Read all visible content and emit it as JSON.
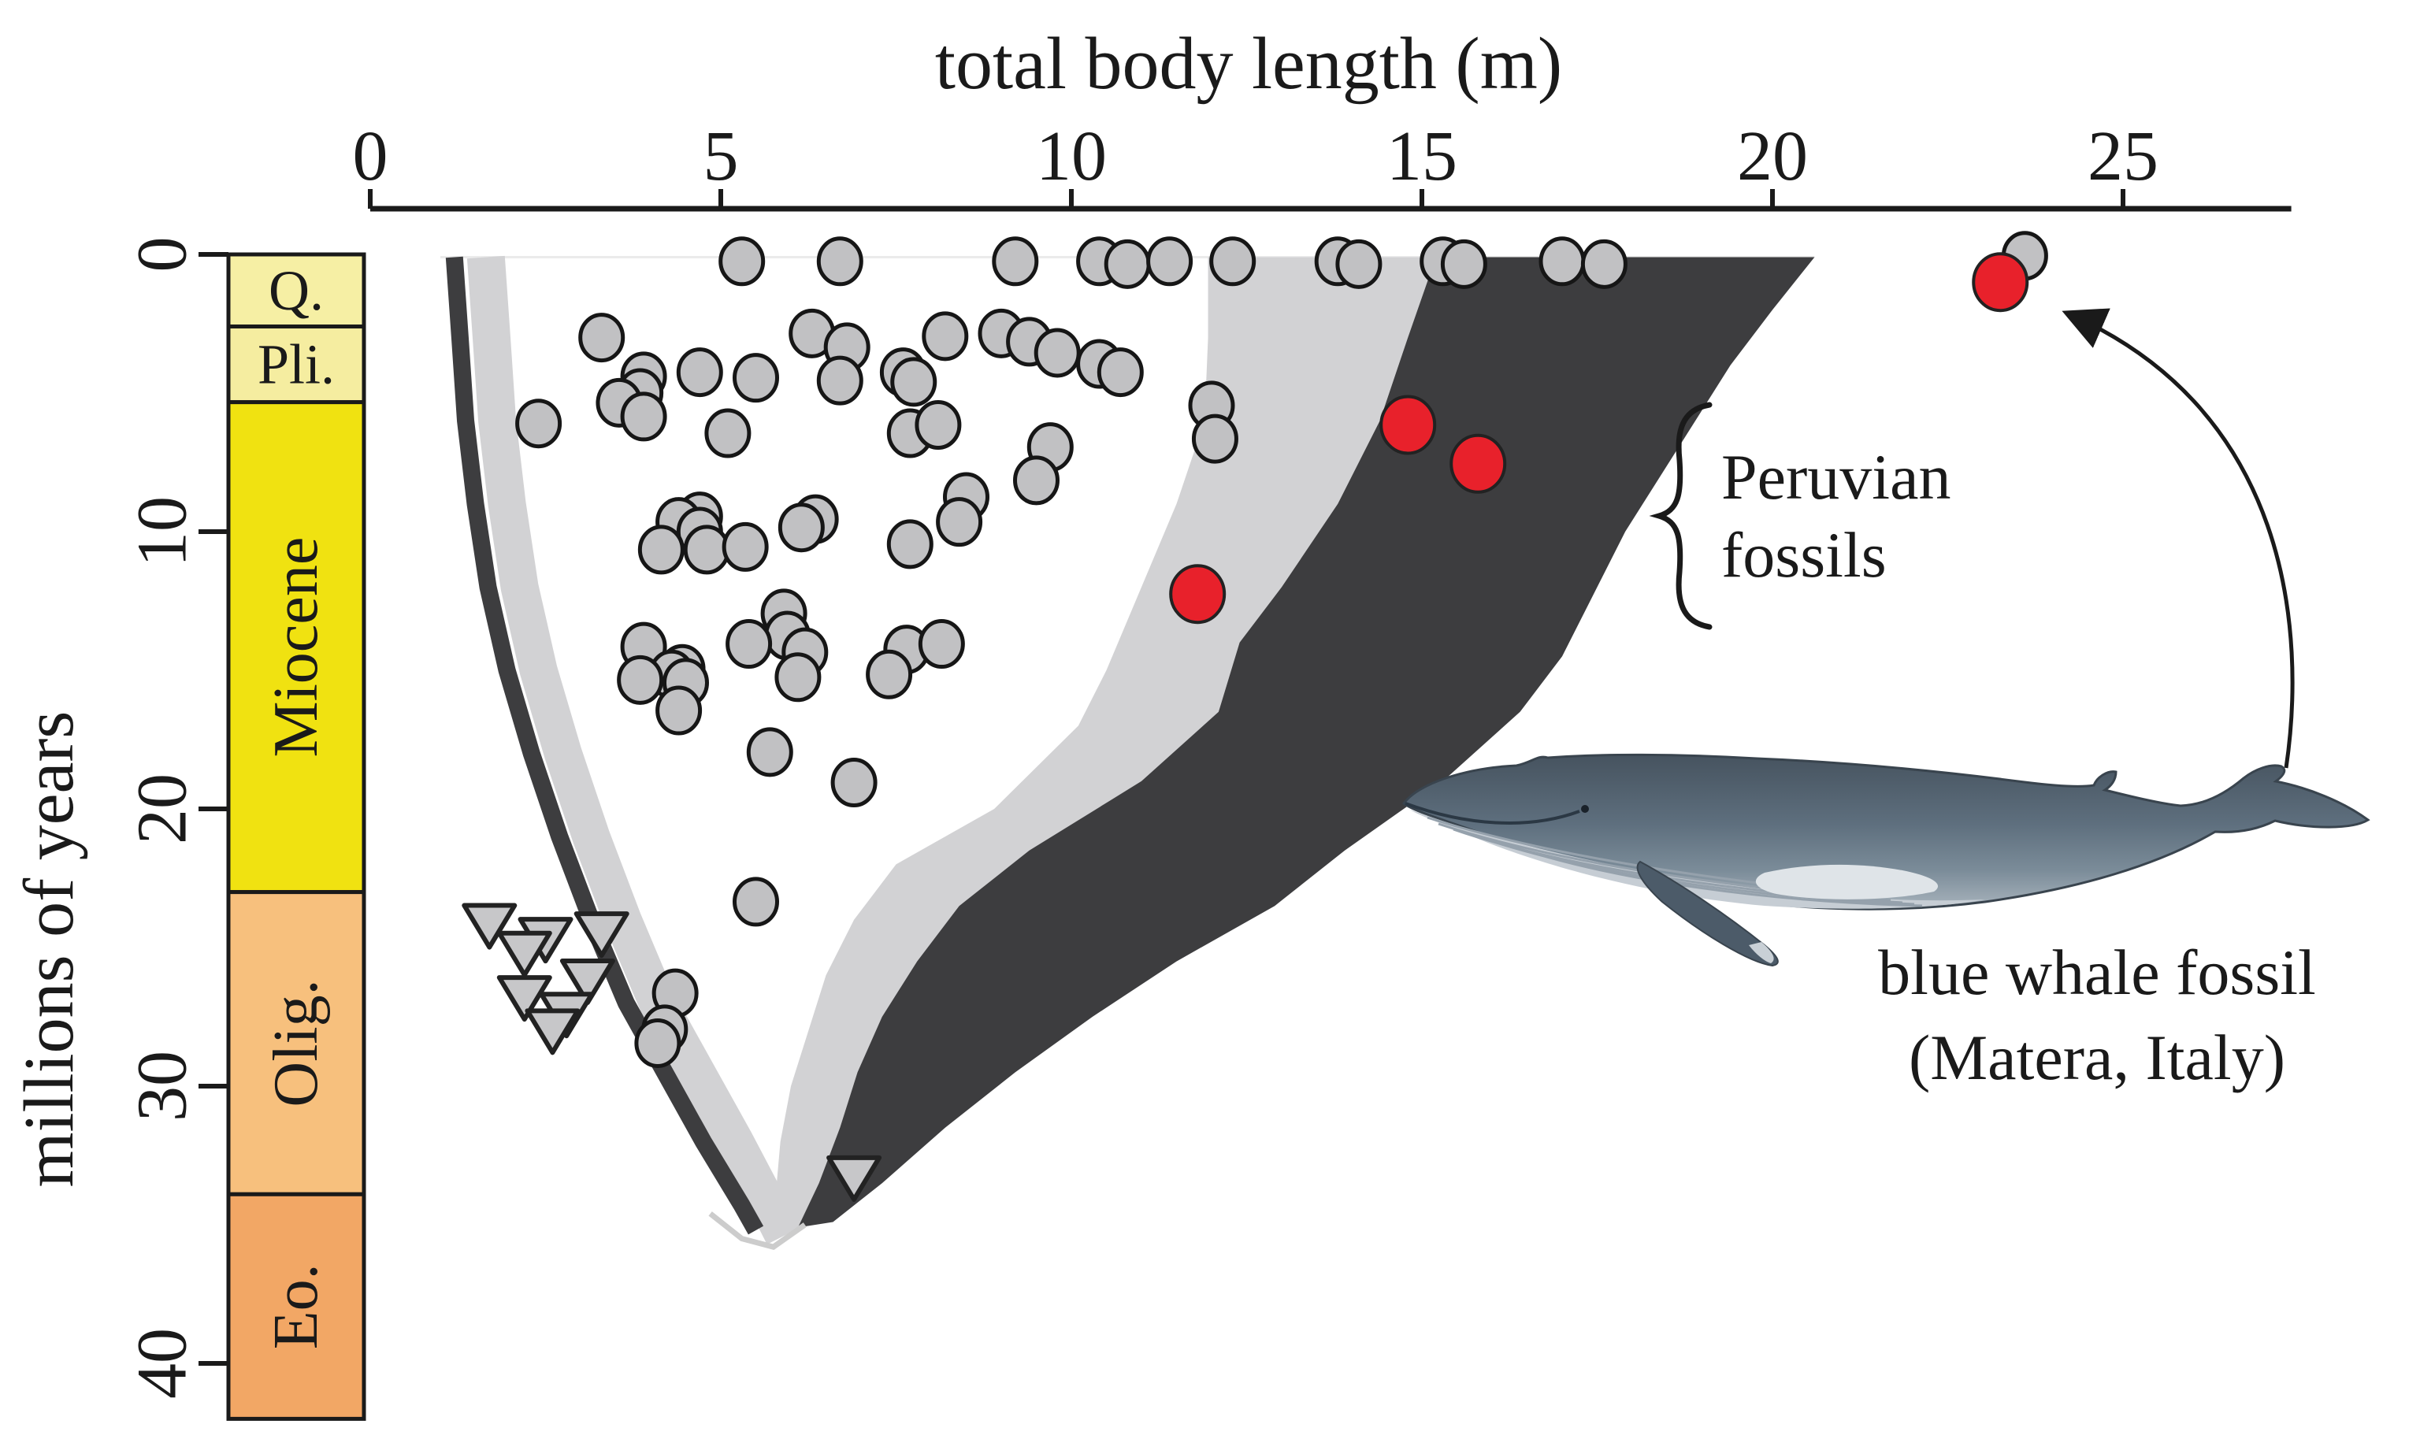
{
  "figure": {
    "x_axis": {
      "title": "total body length (m)",
      "ticks": [
        0,
        5,
        10,
        15,
        20,
        25
      ],
      "range_m": [
        0,
        27.4
      ]
    },
    "y_axis": {
      "title": "millions of years",
      "ticks": [
        0,
        10,
        20,
        30,
        40
      ],
      "range_my": [
        0,
        42
      ]
    },
    "geo_column": {
      "epochs": [
        {
          "label": "Q.",
          "from_my": 0,
          "to_my": 2.6,
          "color": "#f6efa4",
          "rotated": false
        },
        {
          "label": "Pli.",
          "from_my": 2.6,
          "to_my": 5.33,
          "color": "#f5eda0",
          "rotated": false
        },
        {
          "label": "Miocene",
          "from_my": 5.33,
          "to_my": 23.0,
          "color": "#f0e211",
          "rotated": true
        },
        {
          "label": "Olig.",
          "from_my": 23.0,
          "to_my": 33.9,
          "color": "#f7c07d",
          "rotated": true
        },
        {
          "label": "Eo.",
          "from_my": 33.9,
          "to_my": 42.0,
          "color": "#f2a765",
          "rotated": true
        }
      ]
    },
    "annotations": {
      "peruvian_line1": "Peruvian",
      "peruvian_line2": "fossils",
      "caption_line1": "blue whale fossil",
      "caption_line2": "(Matera, Italy)"
    }
  },
  "chart_data": {
    "type": "scatter",
    "xlabel": "total body length (m)",
    "ylabel": "millions of years",
    "xlim": [
      0,
      27.4
    ],
    "ylim": [
      42,
      0
    ],
    "grid": false,
    "baseline_rule_my": 0.1,
    "series": [
      {
        "name": "fossil-whales-gray-circles",
        "marker": "circle",
        "fill": "#c1c1c3",
        "points_m_my": [
          [
            5.3,
            0.25
          ],
          [
            6.7,
            0.25
          ],
          [
            9.2,
            0.25
          ],
          [
            10.4,
            0.25
          ],
          [
            10.8,
            0.35
          ],
          [
            11.4,
            0.25
          ],
          [
            12.3,
            0.25
          ],
          [
            13.8,
            0.25
          ],
          [
            14.1,
            0.35
          ],
          [
            15.3,
            0.25
          ],
          [
            15.6,
            0.35
          ],
          [
            17.0,
            0.25
          ],
          [
            17.6,
            0.35
          ],
          [
            23.6,
            0.05
          ],
          [
            3.3,
            3.0
          ],
          [
            6.3,
            2.85
          ],
          [
            6.8,
            3.35
          ],
          [
            8.2,
            2.95
          ],
          [
            9.0,
            2.85
          ],
          [
            9.4,
            3.15
          ],
          [
            9.8,
            3.55
          ],
          [
            10.4,
            3.95
          ],
          [
            10.7,
            4.25
          ],
          [
            3.9,
            4.4
          ],
          [
            4.7,
            4.25
          ],
          [
            5.5,
            4.45
          ],
          [
            7.6,
            4.25
          ],
          [
            7.75,
            4.6
          ],
          [
            6.7,
            4.55
          ],
          [
            3.85,
            5.0
          ],
          [
            3.55,
            5.35
          ],
          [
            12.0,
            5.45
          ],
          [
            12.05,
            6.65
          ],
          [
            2.4,
            6.1
          ],
          [
            3.9,
            5.85
          ],
          [
            5.1,
            6.45
          ],
          [
            7.7,
            6.45
          ],
          [
            8.1,
            6.15
          ],
          [
            9.7,
            6.95
          ],
          [
            9.5,
            8.15
          ],
          [
            8.5,
            8.75
          ],
          [
            4.7,
            9.45
          ],
          [
            4.4,
            9.65
          ],
          [
            4.7,
            10.0
          ],
          [
            4.15,
            10.65
          ],
          [
            4.8,
            10.65
          ],
          [
            5.35,
            10.55
          ],
          [
            6.35,
            9.55
          ],
          [
            6.15,
            9.85
          ],
          [
            7.7,
            10.45
          ],
          [
            8.4,
            9.65
          ],
          [
            5.9,
            12.95
          ],
          [
            5.95,
            13.75
          ],
          [
            5.4,
            14.05
          ],
          [
            3.9,
            14.15
          ],
          [
            4.45,
            14.95
          ],
          [
            4.3,
            15.15
          ],
          [
            3.85,
            15.35
          ],
          [
            4.5,
            15.45
          ],
          [
            4.4,
            16.45
          ],
          [
            6.2,
            14.35
          ],
          [
            6.1,
            15.25
          ],
          [
            7.65,
            14.25
          ],
          [
            8.15,
            14.05
          ],
          [
            7.4,
            15.15
          ],
          [
            5.7,
            17.95
          ],
          [
            6.9,
            19.05
          ],
          [
            5.5,
            23.35
          ],
          [
            4.35,
            26.65
          ],
          [
            4.2,
            27.95
          ],
          [
            4.1,
            28.45
          ]
        ]
      },
      {
        "name": "toothed-stem-whales-triangles",
        "marker": "triangle-down",
        "fill": "#c7c7c9",
        "points_m_my": [
          [
            1.7,
            24.05
          ],
          [
            2.5,
            24.55
          ],
          [
            3.3,
            24.35
          ],
          [
            2.2,
            25.05
          ],
          [
            3.1,
            26.05
          ],
          [
            2.2,
            26.65
          ],
          [
            2.8,
            27.25
          ],
          [
            2.6,
            27.85
          ],
          [
            6.9,
            33.15
          ]
        ]
      },
      {
        "name": "highlighted-red-fossils",
        "marker": "circle-large",
        "fill": "#e8212b",
        "points_m_my": [
          [
            23.25,
            1.0
          ],
          [
            14.8,
            6.15
          ],
          [
            15.8,
            7.55
          ],
          [
            11.8,
            12.25
          ]
        ]
      }
    ],
    "regions": {
      "left_band_dark_line": [
        [
          1.2,
          0.1
        ],
        [
          1.28,
          3
        ],
        [
          1.36,
          6
        ],
        [
          1.5,
          9
        ],
        [
          1.68,
          12
        ],
        [
          1.95,
          15
        ],
        [
          2.3,
          18
        ],
        [
          2.7,
          21
        ],
        [
          3.15,
          24
        ],
        [
          3.65,
          27
        ],
        [
          4.2,
          29.5
        ],
        [
          4.75,
          32
        ],
        [
          5.3,
          34.3
        ],
        [
          5.5,
          35.2
        ]
      ],
      "left_band_light_line": [
        [
          1.65,
          0.1
        ],
        [
          1.73,
          3
        ],
        [
          1.81,
          6
        ],
        [
          1.95,
          9
        ],
        [
          2.13,
          12
        ],
        [
          2.4,
          15
        ],
        [
          2.75,
          18
        ],
        [
          3.15,
          21
        ],
        [
          3.6,
          24
        ],
        [
          4.1,
          27
        ],
        [
          4.65,
          29.5
        ],
        [
          5.2,
          32
        ],
        [
          5.72,
          34.5
        ],
        [
          5.9,
          35.4
        ]
      ],
      "light_wedge": [
        [
          11.95,
          0.1
        ],
        [
          15.2,
          0.1
        ],
        [
          14.8,
          3
        ],
        [
          14.4,
          6
        ],
        [
          13.8,
          9
        ],
        [
          13.0,
          12
        ],
        [
          12.4,
          14
        ],
        [
          12.1,
          16.5
        ],
        [
          11.0,
          19
        ],
        [
          9.4,
          21.5
        ],
        [
          8.4,
          23.5
        ],
        [
          7.8,
          25.5
        ],
        [
          7.3,
          27.5
        ],
        [
          6.95,
          29.5
        ],
        [
          6.7,
          31.5
        ],
        [
          6.4,
          33.5
        ],
        [
          6.1,
          35.1
        ],
        [
          5.8,
          35.0
        ],
        [
          5.78,
          34
        ],
        [
          5.85,
          32
        ],
        [
          6.0,
          30
        ],
        [
          6.25,
          28
        ],
        [
          6.5,
          26
        ],
        [
          6.9,
          24
        ],
        [
          7.5,
          22
        ],
        [
          8.9,
          20
        ],
        [
          10.1,
          17
        ],
        [
          10.5,
          15
        ],
        [
          11.0,
          12
        ],
        [
          11.5,
          9
        ],
        [
          11.9,
          6
        ],
        [
          11.95,
          3
        ]
      ],
      "dark_wedge": [
        [
          15.2,
          0.1
        ],
        [
          20.6,
          0.1
        ],
        [
          20.0,
          2
        ],
        [
          19.4,
          4
        ],
        [
          18.9,
          6
        ],
        [
          18.4,
          8
        ],
        [
          17.9,
          10
        ],
        [
          17.5,
          12
        ],
        [
          17.0,
          14.5
        ],
        [
          16.4,
          16.5
        ],
        [
          15.3,
          19
        ],
        [
          13.9,
          21.5
        ],
        [
          12.9,
          23.5
        ],
        [
          11.5,
          25.5
        ],
        [
          10.3,
          27.5
        ],
        [
          9.2,
          29.5
        ],
        [
          8.2,
          31.5
        ],
        [
          7.3,
          33.5
        ],
        [
          6.6,
          34.9
        ],
        [
          6.1,
          35.1
        ],
        [
          6.4,
          33.5
        ],
        [
          6.7,
          31.5
        ],
        [
          6.95,
          29.5
        ],
        [
          7.3,
          27.5
        ],
        [
          7.8,
          25.5
        ],
        [
          8.4,
          23.5
        ],
        [
          9.4,
          21.5
        ],
        [
          11.0,
          19
        ],
        [
          12.1,
          16.5
        ],
        [
          12.4,
          14
        ],
        [
          13.0,
          12
        ],
        [
          13.8,
          9
        ],
        [
          14.4,
          6
        ],
        [
          14.8,
          3
        ]
      ],
      "bottom_connector": [
        [
          4.85,
          34.6
        ],
        [
          5.3,
          35.5
        ],
        [
          5.75,
          35.8
        ],
        [
          6.2,
          35.0
        ]
      ]
    },
    "colors": {
      "light_region": "#d2d2d4",
      "dark_region": "#3d3d3f",
      "marker_stroke": "#161616",
      "red": "#e8212b",
      "axis": "#1a1a1a",
      "baseline_rule": "#ebebeb"
    }
  }
}
